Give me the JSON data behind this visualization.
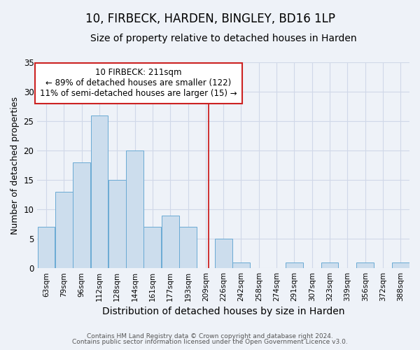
{
  "title": "10, FIRBECK, HARDEN, BINGLEY, BD16 1LP",
  "subtitle": "Size of property relative to detached houses in Harden",
  "xlabel": "Distribution of detached houses by size in Harden",
  "ylabel": "Number of detached properties",
  "footnote1": "Contains HM Land Registry data © Crown copyright and database right 2024.",
  "footnote2": "Contains public sector information licensed under the Open Government Licence v3.0.",
  "categories": [
    "63sqm",
    "79sqm",
    "96sqm",
    "112sqm",
    "128sqm",
    "144sqm",
    "161sqm",
    "177sqm",
    "193sqm",
    "209sqm",
    "226sqm",
    "242sqm",
    "258sqm",
    "274sqm",
    "291sqm",
    "307sqm",
    "323sqm",
    "339sqm",
    "356sqm",
    "372sqm",
    "388sqm"
  ],
  "values": [
    7,
    13,
    18,
    26,
    15,
    20,
    7,
    9,
    7,
    0,
    5,
    1,
    0,
    0,
    1,
    0,
    1,
    0,
    1,
    0,
    1
  ],
  "bar_color": "#ccdded",
  "bar_edge_color": "#6aaad4",
  "background_color": "#eef2f8",
  "plot_bg_color": "#eef2f8",
  "grid_color": "#d0d8e8",
  "ylim": [
    0,
    35
  ],
  "yticks": [
    0,
    5,
    10,
    15,
    20,
    25,
    30,
    35
  ],
  "annotation_line1": "10 FIRBECK: 211sqm",
  "annotation_line2": "← 89% of detached houses are smaller (122)",
  "annotation_line3": "11% of semi-detached houses are larger (15) →",
  "vline_color": "#cc2222",
  "box_face_color": "#ffffff",
  "box_edge_color": "#cc2222",
  "title_fontsize": 12,
  "subtitle_fontsize": 10,
  "tick_fontsize": 7.5,
  "ylabel_fontsize": 9,
  "xlabel_fontsize": 10,
  "annotation_fontsize": 8.5,
  "footnote_fontsize": 6.5
}
